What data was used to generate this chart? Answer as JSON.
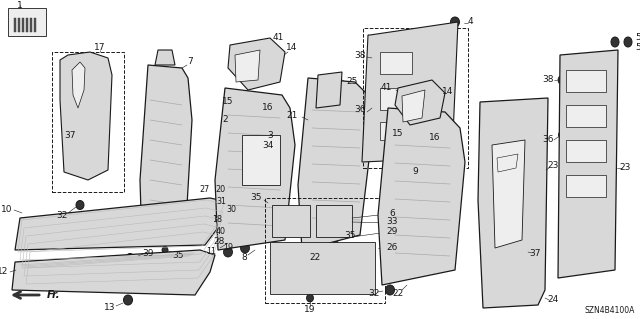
{
  "bg_color": "#ffffff",
  "diagram_code": "SZN4B4100A",
  "fig_width": 6.4,
  "fig_height": 3.19,
  "dpi": 100,
  "line_color": "#1a1a1a",
  "text_color": "#1a1a1a",
  "gray_fill": "#d8d8d8",
  "light_gray": "#eeeeee",
  "dark_fill": "#888888"
}
